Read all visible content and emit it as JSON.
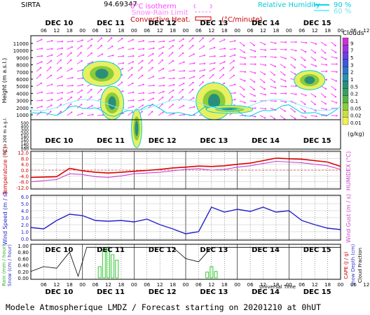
{
  "header": {
    "station": "SIRTA",
    "coords": "94.69347",
    "isotherm_label": "0°C isotherm",
    "snow_rain_label": "Snow-Rain Limit",
    "convective_label": "Convective Heat.",
    "convective_unit": "(°C/minute)",
    "rh_label": "Relative Humidity",
    "rh_90": "90 %",
    "rh_60": "60 %",
    "legend_color_isotherm": "#ff40ff",
    "legend_color_snow": "#ff80ff",
    "legend_color_conv": "#cc0000",
    "legend_color_rh90": "#00ddee",
    "legend_color_rh60": "#80eeff"
  },
  "days": [
    "DEC 10",
    "DEC 11",
    "DEC 12",
    "DEC 13",
    "DEC 14",
    "DEC 15"
  ],
  "hour_ticks": [
    "06",
    "12",
    "18",
    "00",
    "06",
    "12",
    "18",
    "00",
    "06",
    "12",
    "18",
    "00",
    "06",
    "12",
    "18",
    "00",
    "06",
    "12",
    "18",
    "00",
    "06",
    "12",
    "18",
    "00",
    "06",
    "12",
    "18"
  ],
  "footer": {
    "text": "Modele Atmospherique LMDZ / Forecast starting on 20201210 at 0hUT",
    "universal_time": "Universal Time"
  },
  "chart_data": [
    {
      "type": "heatmap",
      "title": "Clouds",
      "ylabel": "Height (m a.s.l.)",
      "ylabel_low": "Up to 200 m a.g.l.",
      "colorbar_unit": "(g/kg)",
      "colorbar_ticks": [
        "9",
        "7",
        "5",
        "3",
        "2",
        "1",
        "0.5",
        "0.2",
        "0.1",
        "0.05",
        "0.02",
        "0.01"
      ],
      "colorbar_colors": [
        "#cc33cc",
        "#a033e0",
        "#6a3ee8",
        "#3f57d8",
        "#2d75c8",
        "#2a90b0",
        "#2a8f7a",
        "#37a060",
        "#55b548",
        "#8ccc3a",
        "#c8e040",
        "#f0f050"
      ],
      "yticks_upper": [
        "11000",
        "10000",
        "9000",
        "8000",
        "7000",
        "6000",
        "5000",
        "4000",
        "3000",
        "2000",
        "1000"
      ],
      "yticks_lower": [
        "500",
        "400",
        "300",
        "200",
        "180",
        "160",
        "140",
        "120",
        "100"
      ],
      "cloud_regions": [
        {
          "day_start": 1.0,
          "day_end": 1.75,
          "z_bottom": 5000,
          "z_top": 8500
        },
        {
          "day_start": 1.35,
          "day_end": 1.8,
          "z_bottom": 500,
          "z_top": 5000
        },
        {
          "day_start": 1.95,
          "day_end": 2.15,
          "z_bottom": 100,
          "z_top": 1800
        },
        {
          "day_start": 3.2,
          "day_end": 3.9,
          "z_bottom": 500,
          "z_top": 5500
        },
        {
          "day_start": 3.4,
          "day_end": 4.3,
          "z_bottom": 1200,
          "z_top": 2300
        },
        {
          "day_start": 5.1,
          "day_end": 5.7,
          "z_bottom": 4500,
          "z_top": 7200
        }
      ]
    },
    {
      "type": "line",
      "title": "",
      "ylabel": "Temperature (°C)",
      "ylabel_right": "HUMIDEX (°C)",
      "yticks": [
        "12.0",
        "8.0",
        "4.0",
        "0.0",
        "-4.0",
        "-8.0",
        "-12.0"
      ],
      "ylim": [
        -12,
        12
      ],
      "x_hours": [
        0,
        12,
        18,
        24,
        30,
        36,
        42,
        48,
        54,
        60,
        66,
        72,
        78,
        84,
        90,
        96,
        102,
        108,
        114,
        120,
        126,
        132,
        138,
        144
      ],
      "series": [
        {
          "name": "Temperature",
          "color": "#dd0000",
          "values": [
            -5.0,
            -4.5,
            1.2,
            -0.5,
            -1.5,
            -2.0,
            -1.5,
            -0.8,
            -0.2,
            0.5,
            1.5,
            2.0,
            2.8,
            2.5,
            3.0,
            4.0,
            4.8,
            6.5,
            8.2,
            7.8,
            7.5,
            6.5,
            5.5,
            2.5
          ]
        },
        {
          "name": "Humidex",
          "color": "#cc44cc",
          "values": [
            -8.0,
            -6.5,
            -2.5,
            -3.0,
            -4.5,
            -5.0,
            -4.0,
            -2.5,
            -2.0,
            -1.5,
            -0.5,
            0.5,
            1.0,
            0.0,
            0.5,
            2.0,
            3.0,
            4.5,
            6.0,
            5.5,
            5.0,
            4.0,
            3.0,
            0.5
          ]
        }
      ]
    },
    {
      "type": "line",
      "title": "",
      "ylabel": "Wind Speed (m / s)",
      "ylabel_right": "Wind Gust (m / s)",
      "yticks": [
        "6.0",
        "5.0",
        "4.0",
        "3.0",
        "2.0",
        "1.0",
        "0.0"
      ],
      "ylim": [
        0,
        6
      ],
      "x_hours": [
        0,
        6,
        12,
        18,
        24,
        30,
        36,
        42,
        48,
        54,
        60,
        66,
        72,
        78,
        84,
        90,
        96,
        102,
        108,
        114,
        120,
        126,
        132,
        138,
        144
      ],
      "series": [
        {
          "name": "Wind Speed",
          "color": "#2222cc",
          "values": [
            1.6,
            1.4,
            2.6,
            3.5,
            3.3,
            2.6,
            2.5,
            2.6,
            2.4,
            2.8,
            2.0,
            1.4,
            0.7,
            1.0,
            4.5,
            3.8,
            4.2,
            3.9,
            4.5,
            3.8,
            4.0,
            2.6,
            2.0,
            1.5,
            1.3
          ]
        }
      ]
    },
    {
      "type": "bar",
      "title": "",
      "ylabel_left": "Rain (mm / hour)",
      "ylabel_left2": "Snow (cm / hour)",
      "ylabel_right": "CAPE (J / g)",
      "ylabel_right2": "Snow Depth (cm)",
      "ylabel_right3": "Cloud Fraction",
      "yticks": [
        "1.00",
        "0.80",
        "0.60",
        "0.40",
        "0.20",
        "0.00"
      ],
      "ylim": [
        0,
        1
      ],
      "rain_hours": [
        32,
        34,
        36,
        38,
        40,
        82,
        84,
        86
      ],
      "rain_values": [
        0.35,
        0.88,
        0.95,
        0.72,
        0.55,
        0.18,
        0.35,
        0.2
      ],
      "rain_color": "#33cc33",
      "cloud_fraction_x": [
        0,
        6,
        12,
        18,
        22,
        26,
        30,
        36,
        42,
        48,
        54,
        60,
        66,
        72,
        78,
        84,
        90,
        96,
        102,
        108,
        114,
        120,
        126,
        132,
        138,
        144
      ],
      "cloud_fraction_values": [
        0.2,
        0.35,
        0.3,
        0.8,
        0.05,
        0.95,
        0.95,
        0.95,
        0.95,
        0.95,
        0.95,
        0.95,
        0.95,
        0.6,
        0.5,
        0.95,
        0.95,
        0.95,
        0.95,
        0.95,
        0.95,
        0.95,
        0.95,
        0.95,
        0.95,
        0.95
      ],
      "cloud_fraction_color": "#000000"
    }
  ]
}
